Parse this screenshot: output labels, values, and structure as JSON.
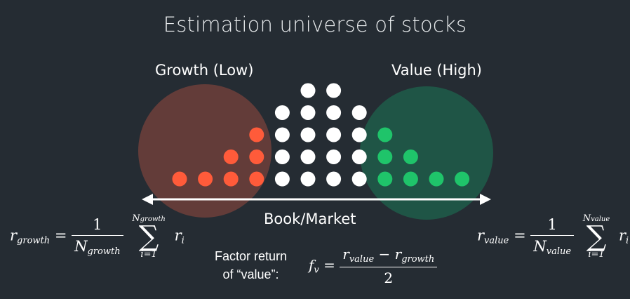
{
  "title": "Estimation universe of stocks",
  "growth_label": "Growth (Low)",
  "value_label": "Value (High)",
  "axis_label": "Book/Market",
  "factor_label_line1": "Factor return",
  "factor_label_line2": "of “value”:",
  "formula_growth": {
    "lhs": "r",
    "lhs_sub": "growth",
    "num": "1",
    "den": "N",
    "den_sub": "growth",
    "sum_upper": "N",
    "sum_upper_sub": "growth",
    "sum_lower": "i=1",
    "term": "r",
    "term_sub": "i"
  },
  "formula_value": {
    "lhs": "r",
    "lhs_sub": "value",
    "num": "1",
    "den": "N",
    "den_sub": "value",
    "sum_upper": "N",
    "sum_upper_sub": "value",
    "sum_lower": "i=1",
    "term": "r",
    "term_sub": "i"
  },
  "formula_factor": {
    "lhs": "f",
    "lhs_sub": "v",
    "num_a": "r",
    "num_a_sub": "value",
    "num_b": "r",
    "num_b_sub": "growth",
    "den": "2"
  },
  "colors": {
    "background": "#252c33",
    "growth_circle": "#6e3f3b",
    "value_circle": "#1f5a48",
    "growth_dot": "#ff5b3a",
    "value_dot": "#1fc46a",
    "neutral_dot": "#ffffff",
    "arrow": "#ffffff"
  },
  "dot_columns": [
    {
      "group": "growth",
      "count": 1
    },
    {
      "group": "growth",
      "count": 1
    },
    {
      "group": "growth",
      "count": 2
    },
    {
      "group": "growth",
      "count": 3
    },
    {
      "group": "neutral",
      "count": 4
    },
    {
      "group": "neutral",
      "count": 5
    },
    {
      "group": "neutral",
      "count": 5
    },
    {
      "group": "neutral",
      "count": 4
    },
    {
      "group": "value",
      "count": 3
    },
    {
      "group": "value",
      "count": 2
    },
    {
      "group": "value",
      "count": 1
    },
    {
      "group": "value",
      "count": 1
    }
  ]
}
